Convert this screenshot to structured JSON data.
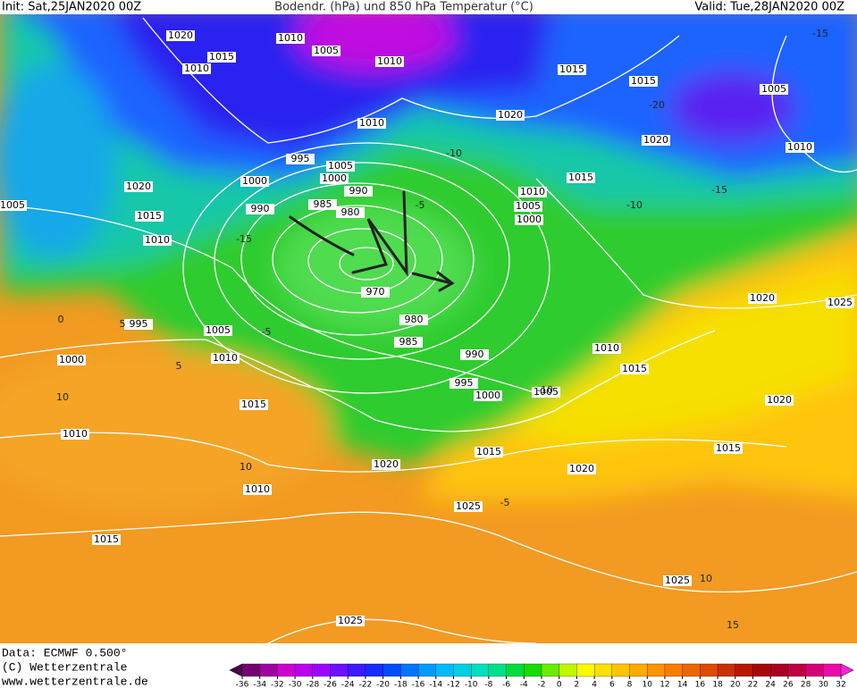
{
  "header": {
    "init": "Init: Sat,25JAN2020 00Z",
    "title": "Bodendr. (hPa) und 850 hPa Temperatur (°C)",
    "valid": "Valid: Tue,28JAN2020 00Z"
  },
  "isobar_labels": [
    1020,
    1010,
    1015,
    1005,
    1010,
    1010,
    1015,
    1015,
    1005,
    1020,
    1010,
    1020,
    1010,
    995,
    1005,
    1000,
    1000,
    990,
    1015,
    1020,
    1010,
    1005,
    985,
    1005,
    990,
    980,
    1000,
    1015,
    1010,
    970,
    1020,
    1025,
    995,
    980,
    1005,
    985,
    1010,
    990,
    1000,
    1010,
    1015,
    995,
    1000,
    1005,
    1020,
    1015,
    1010,
    1015,
    1015,
    1020,
    1020,
    1010,
    1025,
    1015,
    1025,
    1025
  ],
  "temperature_labels": [
    -15,
    -10,
    -5,
    -5,
    5,
    5,
    10,
    10,
    0,
    -10,
    -15,
    -20,
    -15,
    10,
    15,
    -5,
    -10
  ],
  "footer": {
    "data": "Data: ECMWF  0.500°",
    "copyright": "(C) Wetterzentrale",
    "url": "www.wetterzentrale.de"
  },
  "colorbar": {
    "ticks": [
      -36,
      -34,
      -32,
      -30,
      -28,
      -26,
      -24,
      -22,
      -20,
      -18,
      -16,
      -14,
      -12,
      -10,
      -8,
      -6,
      -4,
      -2,
      0,
      2,
      4,
      6,
      8,
      10,
      12,
      14,
      16,
      18,
      20,
      22,
      24,
      26,
      28,
      30,
      32
    ]
  }
}
